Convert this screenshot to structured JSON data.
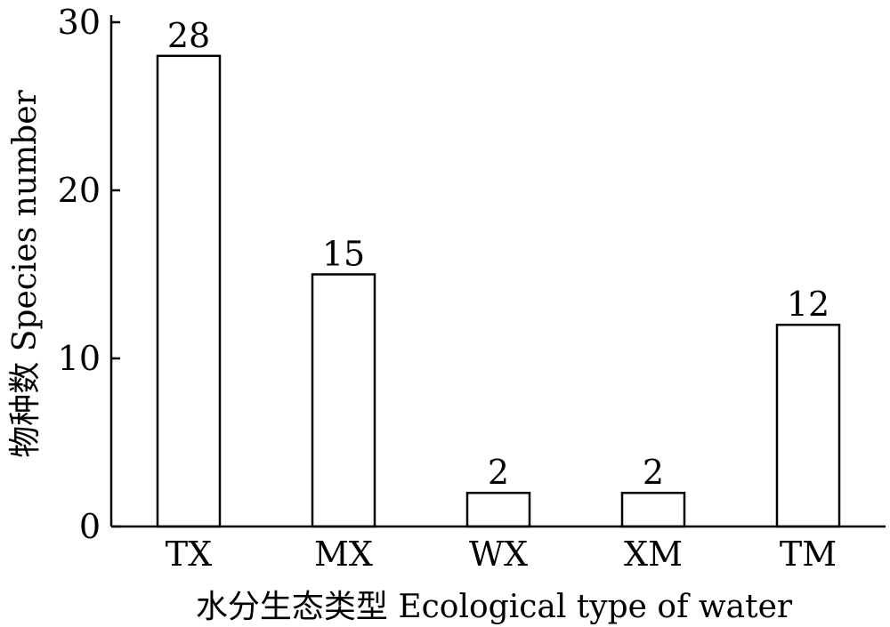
{
  "chart_data": {
    "type": "bar",
    "title": "",
    "categories": [
      "TX",
      "MX",
      "WX",
      "XM",
      "TM"
    ],
    "values": [
      28,
      15,
      2,
      2,
      12
    ],
    "data_labels": [
      "28",
      "15",
      "2",
      "2",
      "12"
    ],
    "xlabel": "水分生态类型 Ecological type of water",
    "ylabel": "物种数 Species number",
    "ylim": [
      0,
      30
    ],
    "yticks": [
      0,
      10,
      20,
      30
    ],
    "grid": false,
    "legend": "none",
    "bar_fill": "#ffffff",
    "bar_stroke": "#000000"
  }
}
